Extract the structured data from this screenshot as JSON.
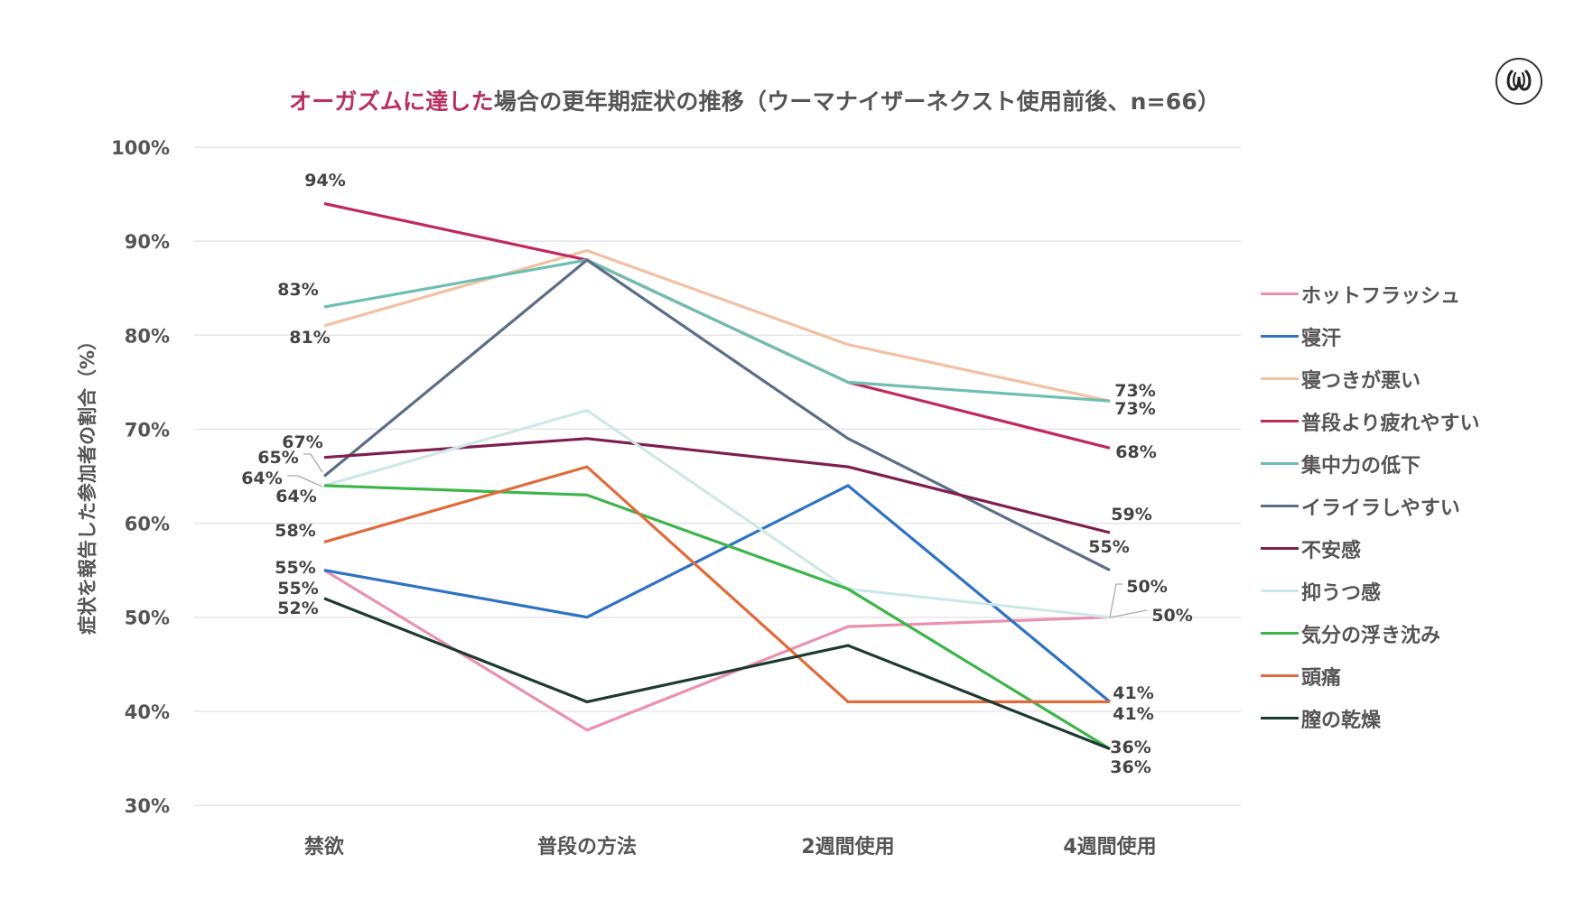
{
  "chart_data": {
    "type": "line",
    "title_highlight": "オーガズムに達した",
    "title_rest": "場合の更年期症状の推移（ウーマナイザーネクスト使用前後、n=66）",
    "ylabel": "症状を報告した参加者の割合（%）",
    "xlabel": "",
    "ylim": [
      30,
      100
    ],
    "yticks": [
      "30%",
      "40%",
      "50%",
      "60%",
      "70%",
      "80%",
      "90%",
      "100%"
    ],
    "ytick_values": [
      30,
      40,
      50,
      60,
      70,
      80,
      90,
      100
    ],
    "grid": true,
    "legend_position": "right",
    "categories": [
      "禁欲",
      "普段の方法",
      "2週間使用",
      "4週間使用"
    ],
    "series": [
      {
        "name": "ホットフラッシュ",
        "color": "#e991b0",
        "values": [
          55,
          38,
          49,
          50
        ]
      },
      {
        "name": "寝汗",
        "color": "#2f72c4",
        "values": [
          55,
          50,
          64,
          41
        ]
      },
      {
        "name": "寝つきが悪い",
        "color": "#f2c0a2",
        "values": [
          81,
          89,
          79,
          73
        ]
      },
      {
        "name": "普段より疲れやすい",
        "color": "#c0285e",
        "values": [
          94,
          88,
          75,
          68
        ]
      },
      {
        "name": "集中力の低下",
        "color": "#6fbfb1",
        "values": [
          83,
          88,
          75,
          73
        ]
      },
      {
        "name": "イライラしやすい",
        "color": "#5a6e88",
        "values": [
          65,
          88,
          69,
          55
        ]
      },
      {
        "name": "不安感",
        "color": "#7e1f4e",
        "values": [
          67,
          69,
          66,
          59
        ]
      },
      {
        "name": "抑うつ感",
        "color": "#cde8e6",
        "values": [
          64,
          72,
          53,
          50
        ]
      },
      {
        "name": "気分の浮き沈み",
        "color": "#3cb54a",
        "values": [
          64,
          63,
          53,
          36
        ]
      },
      {
        "name": "頭痛",
        "color": "#e06a3a",
        "values": [
          58,
          66,
          41,
          41
        ]
      },
      {
        "name": "膣の乾燥",
        "color": "#1d3a33",
        "values": [
          52,
          41,
          47,
          36
        ]
      }
    ],
    "data_labels": [
      {
        "series": "普段より疲れやすい",
        "category": "禁欲",
        "text": "94%"
      },
      {
        "series": "集中力の低下",
        "category": "禁欲",
        "text": "83%"
      },
      {
        "series": "寝つきが悪い",
        "category": "禁欲",
        "text": "81%"
      },
      {
        "series": "不安感",
        "category": "禁欲",
        "text": "67%"
      },
      {
        "series": "イライラしやすい",
        "category": "禁欲",
        "text": "65%"
      },
      {
        "series": "抑うつ感",
        "category": "禁欲",
        "text": "64%"
      },
      {
        "series": "気分の浮き沈み",
        "category": "禁欲",
        "text": "64%"
      },
      {
        "series": "頭痛",
        "category": "禁欲",
        "text": "58%"
      },
      {
        "series": "寝汗",
        "category": "禁欲",
        "text": "55%"
      },
      {
        "series": "ホットフラッシュ",
        "category": "禁欲",
        "text": "55%"
      },
      {
        "series": "膣の乾燥",
        "category": "禁欲",
        "text": "52%"
      },
      {
        "series": "寝つきが悪い",
        "category": "4週間使用",
        "text": "73%"
      },
      {
        "series": "集中力の低下",
        "category": "4週間使用",
        "text": "73%"
      },
      {
        "series": "普段より疲れやすい",
        "category": "4週間使用",
        "text": "68%"
      },
      {
        "series": "不安感",
        "category": "4週間使用",
        "text": "59%"
      },
      {
        "series": "イライラしやすい",
        "category": "4週間使用",
        "text": "55%"
      },
      {
        "series": "抑うつ感",
        "category": "4週間使用",
        "text": "50%"
      },
      {
        "series": "ホットフラッシュ",
        "category": "4週間使用",
        "text": "50%"
      },
      {
        "series": "寝汗",
        "category": "4週間使用",
        "text": "41%"
      },
      {
        "series": "頭痛",
        "category": "4週間使用",
        "text": "41%"
      },
      {
        "series": "気分の浮き沈み",
        "category": "4週間使用",
        "text": "36%"
      },
      {
        "series": "膣の乾燥",
        "category": "4週間使用",
        "text": "36%"
      }
    ]
  },
  "logo": {
    "glyph": "ω",
    "name": "womanizer-logo"
  }
}
